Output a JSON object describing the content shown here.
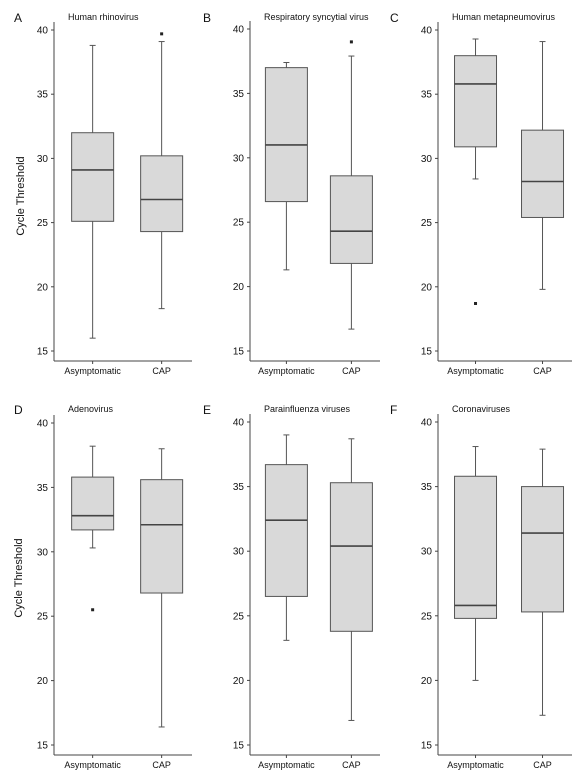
{
  "ylabel": "Cycle Threshold",
  "chart_data": [
    {
      "type": "box",
      "panel_letter": "A",
      "title": "Human rhinovirus",
      "categories": [
        "Asymptomatic",
        "CAP"
      ],
      "ylim": [
        15,
        40
      ],
      "yticks": [
        15,
        20,
        25,
        30,
        35,
        40
      ],
      "boxes": [
        {
          "whisker_low": 16.0,
          "q1": 25.1,
          "median": 29.1,
          "q3": 32.0,
          "whisker_high": 38.8,
          "outliers": []
        },
        {
          "whisker_low": 18.3,
          "q1": 24.3,
          "median": 26.8,
          "q3": 30.2,
          "whisker_high": 39.1,
          "outliers": [
            39.7
          ]
        }
      ]
    },
    {
      "type": "box",
      "panel_letter": "B",
      "title": "Respiratory syncytial virus",
      "categories": [
        "Asymptomatic",
        "CAP"
      ],
      "ylim": [
        15,
        40
      ],
      "yticks": [
        15,
        20,
        25,
        30,
        35,
        40
      ],
      "boxes": [
        {
          "whisker_low": 21.3,
          "q1": 26.6,
          "median": 31.0,
          "q3": 37.0,
          "whisker_high": 37.4,
          "outliers": []
        },
        {
          "whisker_low": 16.7,
          "q1": 21.8,
          "median": 24.3,
          "q3": 28.6,
          "whisker_high": 37.9,
          "outliers": [
            39.0
          ]
        }
      ]
    },
    {
      "type": "box",
      "panel_letter": "C",
      "title": "Human metapneumovirus",
      "categories": [
        "Asymptomatic",
        "CAP"
      ],
      "ylim": [
        15,
        40
      ],
      "yticks": [
        15,
        20,
        25,
        30,
        35,
        40
      ],
      "boxes": [
        {
          "whisker_low": 28.4,
          "q1": 30.9,
          "median": 35.8,
          "q3": 38.0,
          "whisker_high": 39.3,
          "outliers": [
            18.7
          ]
        },
        {
          "whisker_low": 19.8,
          "q1": 25.4,
          "median": 28.2,
          "q3": 32.2,
          "whisker_high": 39.1,
          "outliers": []
        }
      ]
    },
    {
      "type": "box",
      "panel_letter": "D",
      "title": "Adenovirus",
      "categories": [
        "Asymptomatic",
        "CAP"
      ],
      "ylim": [
        15,
        40
      ],
      "yticks": [
        15,
        20,
        25,
        30,
        35,
        40
      ],
      "boxes": [
        {
          "whisker_low": 30.3,
          "q1": 31.7,
          "median": 32.8,
          "q3": 35.8,
          "whisker_high": 38.2,
          "outliers": [
            25.5
          ]
        },
        {
          "whisker_low": 16.4,
          "q1": 26.8,
          "median": 32.1,
          "q3": 35.6,
          "whisker_high": 38.0,
          "outliers": []
        }
      ]
    },
    {
      "type": "box",
      "panel_letter": "E",
      "title": "Parainfluenza viruses",
      "categories": [
        "Asymptomatic",
        "CAP"
      ],
      "ylim": [
        15,
        40
      ],
      "yticks": [
        15,
        20,
        25,
        30,
        35,
        40
      ],
      "boxes": [
        {
          "whisker_low": 23.1,
          "q1": 26.5,
          "median": 32.4,
          "q3": 36.7,
          "whisker_high": 39.0,
          "outliers": []
        },
        {
          "whisker_low": 16.9,
          "q1": 23.8,
          "median": 30.4,
          "q3": 35.3,
          "whisker_high": 38.7,
          "outliers": []
        }
      ]
    },
    {
      "type": "box",
      "panel_letter": "F",
      "title": "Coronaviruses",
      "categories": [
        "Asymptomatic",
        "CAP"
      ],
      "ylim": [
        15,
        40
      ],
      "yticks": [
        15,
        20,
        25,
        30,
        35,
        40
      ],
      "boxes": [
        {
          "whisker_low": 20.0,
          "q1": 24.8,
          "median": 25.8,
          "q3": 35.8,
          "whisker_high": 38.1,
          "outliers": []
        },
        {
          "whisker_low": 17.3,
          "q1": 25.3,
          "median": 31.4,
          "q3": 35.0,
          "whisker_high": 37.9,
          "outliers": []
        }
      ]
    }
  ]
}
